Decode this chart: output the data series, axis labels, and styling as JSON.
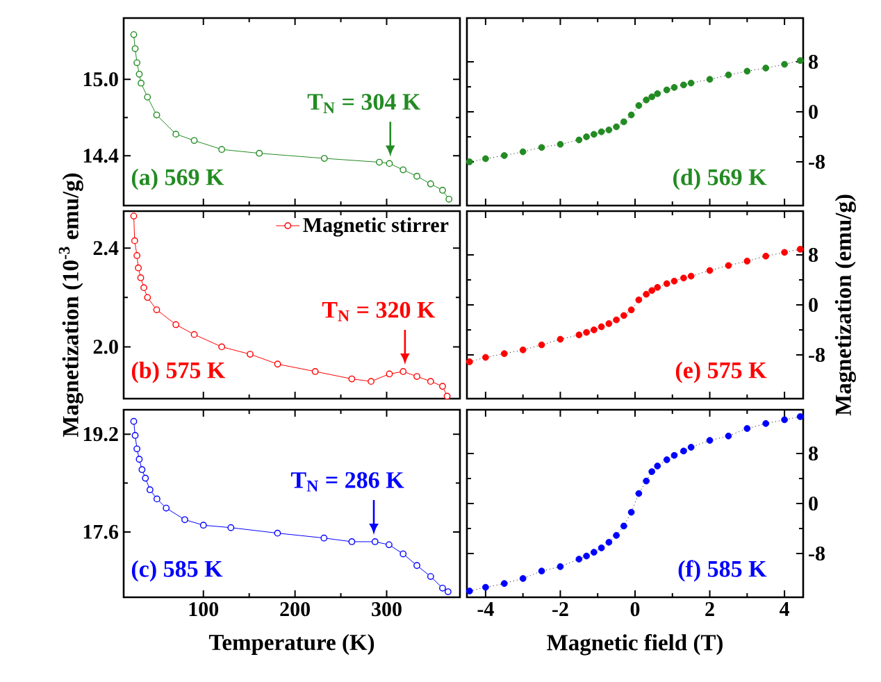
{
  "chart_data": [
    {
      "type": "line",
      "xlim": [
        13,
        380
      ],
      "ylim": [
        14.01,
        15.48
      ],
      "xticks": [
        100,
        200,
        300
      ],
      "yticks": [
        {
          "value": 14.4,
          "label": "14.4"
        },
        {
          "value": 15.0,
          "label": "15.0"
        }
      ],
      "tick_labels": "y",
      "marker": "circle",
      "line_style": "solid",
      "annotations": [
        "(a) 569 K",
        {
          "text": "T$_{N}$ =  304 K",
          "x": 304,
          "y": 14.34
        }
      ],
      "series": [
        {
          "color": "#228b22",
          "x": [
            24,
            25.5,
            27.5,
            30,
            32,
            39,
            49,
            70,
            90,
            120,
            161,
            232,
            292,
            303,
            318,
            333,
            348,
            361,
            368
          ],
          "values": [
            15.35,
            15.24,
            15.13,
            15.04,
            14.97,
            14.86,
            14.72,
            14.57,
            14.52,
            14.45,
            14.42,
            14.38,
            14.35,
            14.34,
            14.29,
            14.24,
            14.18,
            14.13,
            14.06
          ]
        }
      ]
    },
    {
      "type": "line",
      "xlim": [
        -4.5,
        4.5
      ],
      "y2lim": [
        -15,
        15
      ],
      "xticks": [
        -4,
        -2,
        0,
        2,
        4
      ],
      "y2ticks": [
        -8,
        0,
        8
      ],
      "tick_labels": "y",
      "marker": "circle",
      "line_style": "dotted",
      "annotations": [
        "(d) 569 K"
      ],
      "series": [
        {
          "color": "#228b22",
          "axis": "y2",
          "x": [
            -4.43,
            -4,
            -3.5,
            -3,
            -2.5,
            -2,
            -1.5,
            -1.3,
            -1.1,
            -0.9,
            -0.7,
            -0.5,
            -0.3,
            -0.1,
            0.1,
            0.3,
            0.45,
            0.6,
            0.85,
            1.05,
            1.3,
            1.5,
            2,
            2.5,
            3,
            3.5,
            4,
            4.42
          ],
          "values": [
            -8.0,
            -7.5,
            -7.0,
            -6.4,
            -5.7,
            -5.2,
            -4.5,
            -4.0,
            -3.6,
            -3.2,
            -2.9,
            -2.4,
            -1.6,
            -0.5,
            1.0,
            1.9,
            2.4,
            2.9,
            3.5,
            3.9,
            4.3,
            4.6,
            5.2,
            5.9,
            6.5,
            7.0,
            7.6,
            8.2
          ]
        }
      ]
    },
    {
      "type": "line",
      "ylabel": "Magnetization (10$^{-3}$ emu/g)",
      "xlim": [
        13,
        380
      ],
      "ylim": [
        1.79,
        2.55
      ],
      "xticks": [
        100,
        200,
        300
      ],
      "yticks": [
        {
          "value": 2.0,
          "label": "2.0"
        },
        {
          "value": 2.4,
          "label": "2.4"
        }
      ],
      "tick_labels": "y",
      "marker": "circle",
      "line_style": "solid",
      "legend": "top right",
      "annotations": [
        "(b) 575 K",
        {
          "text": "T$_{N}$ =  320 K",
          "x": 320,
          "y": 1.9
        }
      ],
      "series": [
        {
          "name": "Magnetic stirrer",
          "color": "#ff0000",
          "x": [
            24,
            25,
            27.5,
            29,
            31.6,
            35,
            39,
            49,
            70,
            90,
            120,
            151,
            181,
            222,
            262,
            283,
            303,
            318,
            333,
            348,
            361,
            366
          ],
          "values": [
            2.53,
            2.43,
            2.37,
            2.32,
            2.28,
            2.24,
            2.2,
            2.15,
            2.09,
            2.05,
            2.0,
            1.97,
            1.93,
            1.9,
            1.87,
            1.86,
            1.89,
            1.9,
            1.88,
            1.86,
            1.84,
            1.8
          ]
        }
      ]
    },
    {
      "type": "line",
      "y2label": "Magnetization (emu/g)",
      "xlim": [
        -4.5,
        4.5
      ],
      "y2lim": [
        -15,
        15
      ],
      "xticks": [
        -4,
        -2,
        0,
        2,
        4
      ],
      "y2ticks": [
        -8,
        0,
        8
      ],
      "tick_labels": "y",
      "marker": "circle",
      "line_style": "dotted",
      "annotations": [
        "(e) 575 K"
      ],
      "series": [
        {
          "color": "#ff0000",
          "axis": "y2",
          "x": [
            -4.43,
            -4,
            -3.5,
            -3,
            -2.5,
            -2,
            -1.5,
            -1.3,
            -1.1,
            -0.9,
            -0.7,
            -0.5,
            -0.3,
            -0.1,
            0.1,
            0.3,
            0.45,
            0.6,
            0.85,
            1.05,
            1.3,
            1.5,
            2,
            2.5,
            3,
            3.5,
            4,
            4.42
          ],
          "values": [
            -9.1,
            -8.4,
            -7.8,
            -7.2,
            -6.4,
            -5.5,
            -4.8,
            -4.4,
            -4.0,
            -3.5,
            -3.0,
            -2.4,
            -1.7,
            -0.8,
            0.8,
            1.7,
            2.3,
            2.8,
            3.4,
            3.8,
            4.3,
            4.6,
            5.5,
            6.3,
            7.0,
            7.8,
            8.4,
            8.9
          ]
        }
      ]
    },
    {
      "type": "line",
      "xlabel": "Temperature (K)",
      "xlim": [
        13,
        380
      ],
      "ylim": [
        16.53,
        19.6
      ],
      "xticks": [
        100,
        200,
        300
      ],
      "yticks": [
        {
          "value": 17.6,
          "label": "17.6"
        },
        {
          "value": 19.2,
          "label": "19.2"
        }
      ],
      "marker": "circle",
      "line_style": "solid",
      "annotations": [
        "(c) 585 K",
        {
          "text": "T$_{N}$ =  286 K",
          "x": 286,
          "y": 17.44
        }
      ],
      "series": [
        {
          "color": "#0000ff",
          "x": [
            24,
            25.5,
            27.5,
            30,
            33,
            36.7,
            41.7,
            49.3,
            59.4,
            79.7,
            100,
            130,
            180.9,
            231.6,
            262,
            287.3,
            302.6,
            318,
            333,
            348,
            361,
            367
          ],
          "values": [
            19.41,
            19.18,
            18.96,
            18.79,
            18.62,
            18.48,
            18.29,
            18.14,
            17.99,
            17.8,
            17.71,
            17.67,
            17.58,
            17.5,
            17.44,
            17.44,
            17.39,
            17.24,
            17.05,
            16.87,
            16.68,
            16.62
          ]
        }
      ]
    },
    {
      "type": "line",
      "xlabel": "Magnetic field (T)",
      "xlim": [
        -4.5,
        4.5
      ],
      "y2lim": [
        -15,
        15
      ],
      "xticks": [
        -4,
        -2,
        0,
        2,
        4
      ],
      "y2ticks": [
        -8,
        0,
        8
      ],
      "marker": "circle",
      "line_style": "dotted",
      "annotations": [
        "(f) 585 K"
      ],
      "series": [
        {
          "color": "#0000ff",
          "axis": "y2",
          "x": [
            -4.43,
            -4,
            -3.5,
            -3,
            -2.5,
            -2,
            -1.5,
            -1.3,
            -1.1,
            -0.9,
            -0.7,
            -0.5,
            -0.3,
            -0.1,
            0.1,
            0.3,
            0.45,
            0.6,
            0.85,
            1.05,
            1.3,
            1.5,
            2,
            2.5,
            3,
            3.5,
            4,
            4.42
          ],
          "values": [
            -14.0,
            -13.4,
            -12.8,
            -12.0,
            -10.8,
            -10.1,
            -8.9,
            -8.4,
            -7.8,
            -7.1,
            -6.2,
            -5.1,
            -3.6,
            -1.4,
            1.6,
            3.6,
            5.1,
            6.0,
            7.0,
            7.7,
            8.4,
            9.0,
            10.1,
            10.8,
            12.0,
            12.8,
            13.4,
            13.9
          ]
        }
      ]
    }
  ]
}
